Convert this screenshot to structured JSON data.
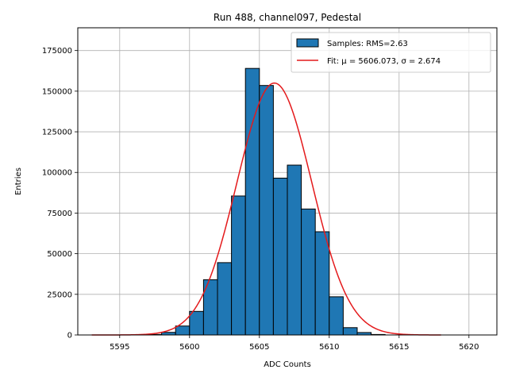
{
  "chart_data": {
    "type": "bar",
    "title": "Run 488, channel097, Pedestal",
    "xlabel": "ADC Counts",
    "ylabel": "Entries",
    "xlim": [
      5592,
      5622
    ],
    "ylim": [
      0,
      189000
    ],
    "grid": true,
    "legend_position": "top-right",
    "x_ticks": [
      5595,
      5600,
      5605,
      5610,
      5615,
      5620
    ],
    "y_ticks": [
      0,
      25000,
      50000,
      75000,
      100000,
      125000,
      150000,
      175000
    ],
    "bin_width": 1,
    "histogram": {
      "name": "Samples: RMS=2.63",
      "color": "#1f77b4",
      "edge_color": "#000000",
      "bins": [
        {
          "left": 5597,
          "count": 300
        },
        {
          "left": 5598,
          "count": 1600
        },
        {
          "left": 5599,
          "count": 5500
        },
        {
          "left": 5600,
          "count": 14500
        },
        {
          "left": 5601,
          "count": 34000
        },
        {
          "left": 5602,
          "count": 44500
        },
        {
          "left": 5603,
          "count": 85500
        },
        {
          "left": 5604,
          "count": 164000
        },
        {
          "left": 5605,
          "count": 153500
        },
        {
          "left": 5606,
          "count": 96500
        },
        {
          "left": 5607,
          "count": 104500
        },
        {
          "left": 5608,
          "count": 77500
        },
        {
          "left": 5609,
          "count": 63500
        },
        {
          "left": 5610,
          "count": 23500
        },
        {
          "left": 5611,
          "count": 4500
        },
        {
          "left": 5612,
          "count": 1500
        },
        {
          "left": 5613,
          "count": 300
        }
      ]
    },
    "fit": {
      "name": "Fit: μ = 5606.073, σ = 2.674",
      "color": "#e41a1c",
      "mu": 5606.073,
      "sigma": 2.674,
      "amplitude": 155000,
      "x_range": [
        5593,
        5618
      ]
    }
  }
}
